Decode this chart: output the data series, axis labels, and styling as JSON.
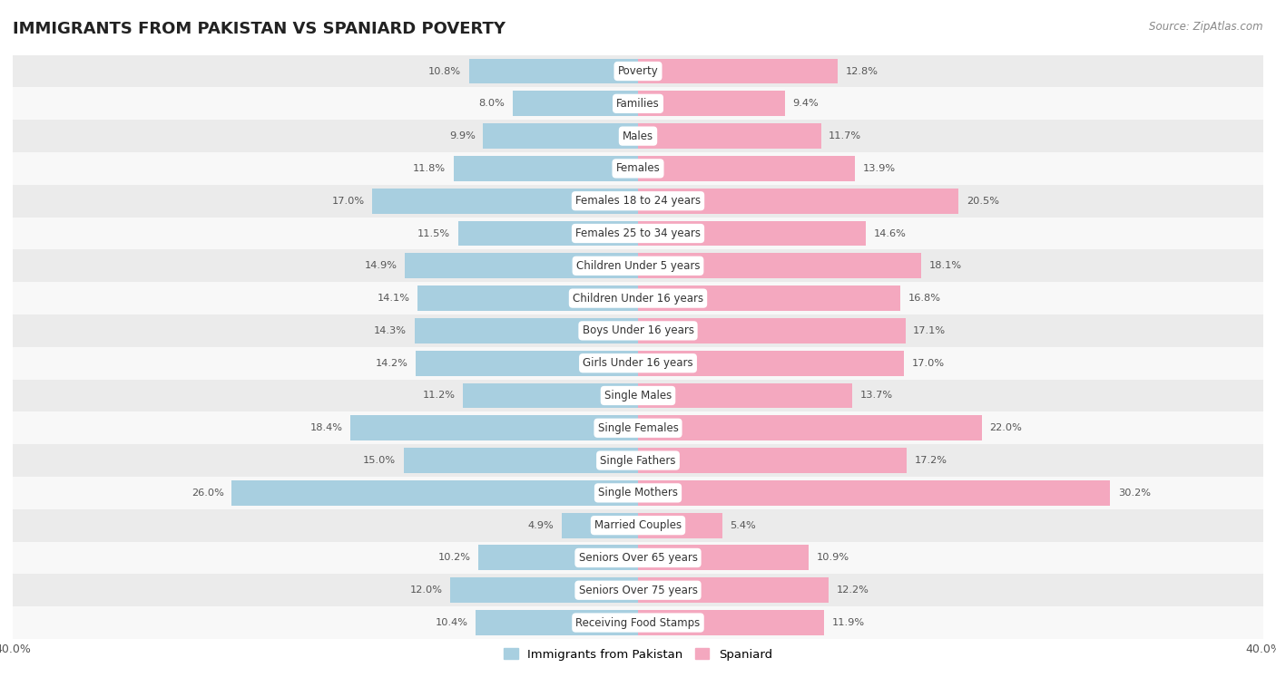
{
  "title": "IMMIGRANTS FROM PAKISTAN VS SPANIARD POVERTY",
  "source": "Source: ZipAtlas.com",
  "categories": [
    "Poverty",
    "Families",
    "Males",
    "Females",
    "Females 18 to 24 years",
    "Females 25 to 34 years",
    "Children Under 5 years",
    "Children Under 16 years",
    "Boys Under 16 years",
    "Girls Under 16 years",
    "Single Males",
    "Single Females",
    "Single Fathers",
    "Single Mothers",
    "Married Couples",
    "Seniors Over 65 years",
    "Seniors Over 75 years",
    "Receiving Food Stamps"
  ],
  "pakistan_values": [
    10.8,
    8.0,
    9.9,
    11.8,
    17.0,
    11.5,
    14.9,
    14.1,
    14.3,
    14.2,
    11.2,
    18.4,
    15.0,
    26.0,
    4.9,
    10.2,
    12.0,
    10.4
  ],
  "spaniard_values": [
    12.8,
    9.4,
    11.7,
    13.9,
    20.5,
    14.6,
    18.1,
    16.8,
    17.1,
    17.0,
    13.7,
    22.0,
    17.2,
    30.2,
    5.4,
    10.9,
    12.2,
    11.9
  ],
  "pakistan_color": "#a8cfe0",
  "spaniard_color": "#f4a8bf",
  "background_row_even": "#ebebeb",
  "background_row_odd": "#f8f8f8",
  "axis_max": 40.0,
  "bar_height": 0.78,
  "legend_pakistan": "Immigrants from Pakistan",
  "legend_spaniard": "Spaniard"
}
